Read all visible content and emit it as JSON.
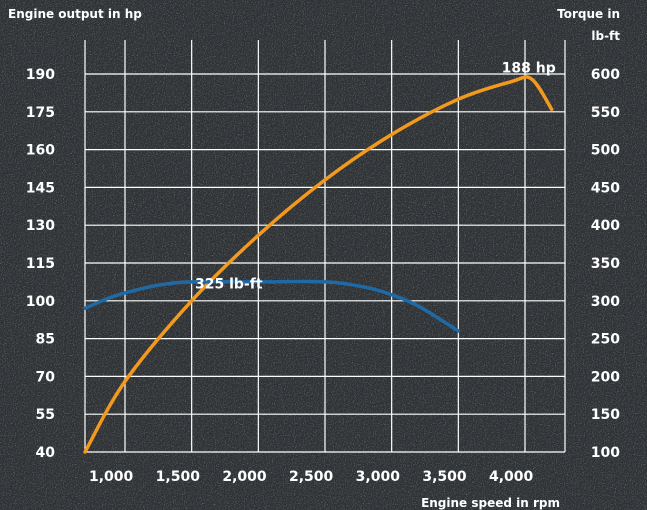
{
  "chart_data": {
    "type": "line",
    "left_axis_title": "Engine  output in hp",
    "right_axis_title_line1": "Torque in",
    "right_axis_title_line2": "lb-ft",
    "xlabel": "Engine speed in rpm",
    "x_ticks": [
      "1,000",
      "1,500",
      "2,000",
      "2,500",
      "3,000",
      "3,500",
      "4,000"
    ],
    "y_left_ticks": [
      "190",
      "175",
      "160",
      "145",
      "130",
      "115",
      "100",
      "85",
      "70",
      "55",
      "40"
    ],
    "y_right_ticks": [
      "600",
      "550",
      "500",
      "450",
      "400",
      "350",
      "300",
      "250",
      "200",
      "150",
      "100"
    ],
    "xlim": [
      700,
      4300
    ],
    "ylim_left": [
      40,
      190
    ],
    "ylim_right": [
      100,
      600
    ],
    "grid": true,
    "colors": {
      "background": "#2b2f33",
      "grid": "#ffffff",
      "text": "#ffffff",
      "power": "#f39a1e",
      "torque": "#1f6aa5"
    },
    "series": [
      {
        "axis": "left",
        "color": "#f39a1e",
        "x": [
          700,
          1000,
          1500,
          2000,
          2500,
          3000,
          3500,
          3900,
          4050,
          4200
        ],
        "y": [
          40,
          68,
          100,
          126,
          148,
          166,
          180,
          187,
          188,
          176
        ]
      },
      {
        "axis": "right",
        "color": "#1f6aa5",
        "x": [
          700,
          900,
          1100,
          1300,
          1500,
          2000,
          2500,
          2800,
          3000,
          3200,
          3500
        ],
        "y": [
          290,
          305,
          315,
          322,
          325,
          325,
          325,
          318,
          308,
          293,
          260
        ]
      }
    ],
    "annotations": [
      {
        "text": "188 hp",
        "x": 3900,
        "y": 190.5
      },
      {
        "text": "325 lb-ft",
        "x": 1600,
        "y": 316
      }
    ]
  }
}
